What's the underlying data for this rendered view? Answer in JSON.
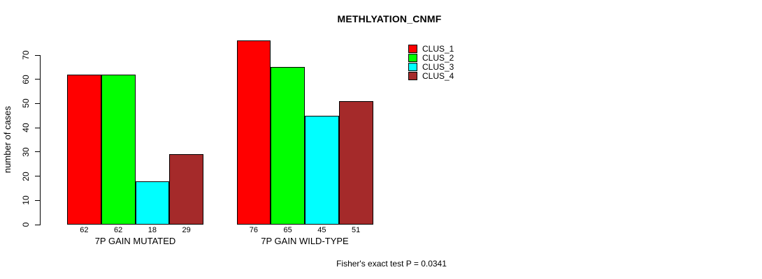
{
  "page": {
    "background": "#ffffff"
  },
  "chart_data": {
    "type": "bar",
    "title": "METHLYATION_CNMF",
    "ylabel": "number of cases",
    "xlabel": "",
    "ylim": [
      0,
      70
    ],
    "yticks": [
      0,
      10,
      20,
      30,
      40,
      50,
      60,
      70
    ],
    "grid": false,
    "legend_position": "top-right",
    "categories": [
      "7P GAIN MUTATED",
      "7P GAIN WILD-TYPE"
    ],
    "series": [
      {
        "name": "CLUS_1",
        "color": "#ff0000",
        "values": [
          62,
          76
        ]
      },
      {
        "name": "CLUS_2",
        "color": "#00ff00",
        "values": [
          62,
          65
        ]
      },
      {
        "name": "CLUS_3",
        "color": "#00ffff",
        "values": [
          18,
          45
        ]
      },
      {
        "name": "CLUS_4",
        "color": "#a52a2a",
        "values": [
          29,
          51
        ]
      }
    ],
    "groups": [
      {
        "label": "7P GAIN MUTATED",
        "values": [
          62,
          62,
          18,
          29
        ]
      },
      {
        "label": "7P GAIN WILD-TYPE",
        "values": [
          76,
          65,
          45,
          51
        ]
      }
    ],
    "bar_value_labels": true,
    "annotation": "Fisher's exact test P = 0.0341",
    "axis_color": "#000000",
    "bar_border_color": "#000000"
  }
}
